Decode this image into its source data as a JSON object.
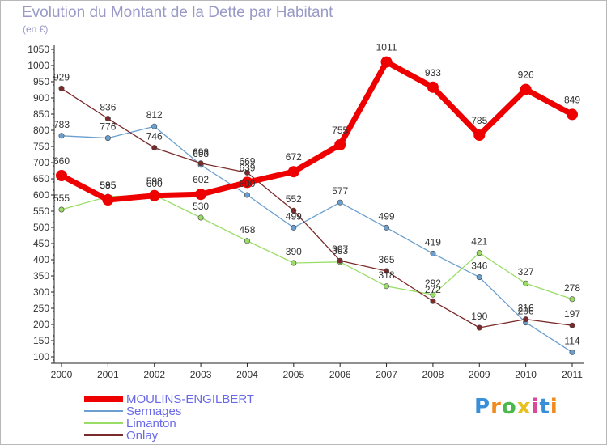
{
  "title": "Evolution du Montant de la Dette par Habitant",
  "subtitle": "(en €)",
  "logo_text": "Proxiti",
  "chart_data": {
    "type": "line",
    "title": "Evolution du Montant de la Dette par Habitant",
    "subtitle": "(en €)",
    "x": [
      "2000",
      "2001",
      "2002",
      "2003",
      "2004",
      "2005",
      "2006",
      "2007",
      "2008",
      "2009",
      "2010",
      "2011"
    ],
    "yticks": [
      "100",
      "150",
      "200",
      "250",
      "300",
      "350",
      "400",
      "450",
      "500",
      "550",
      "600",
      "650",
      "700",
      "750",
      "800",
      "850",
      "900",
      "950",
      "1000",
      "1050"
    ],
    "ylim": [
      100,
      1050
    ],
    "grid": false,
    "legend_position": "bottom-left",
    "series": [
      {
        "name": "MOULINS-ENGILBERT",
        "color": "#ee0000",
        "values": [
          660,
          585,
          598,
          602,
          639,
          672,
          755,
          1011,
          933,
          785,
          926,
          849
        ]
      },
      {
        "name": "Sermages",
        "color": "#6b9fcf",
        "values": [
          783,
          776,
          812,
          693,
          600,
          499,
          577,
          499,
          419,
          346,
          206,
          114
        ]
      },
      {
        "name": "Limanton",
        "color": "#99dd66",
        "values": [
          555,
          595,
          600,
          530,
          458,
          390,
          393,
          318,
          292,
          421,
          327,
          278
        ]
      },
      {
        "name": "Onlay",
        "color": "#7a2a2a",
        "values": [
          929,
          836,
          746,
          698,
          669,
          552,
          397,
          365,
          272,
          190,
          216,
          197
        ]
      }
    ]
  }
}
